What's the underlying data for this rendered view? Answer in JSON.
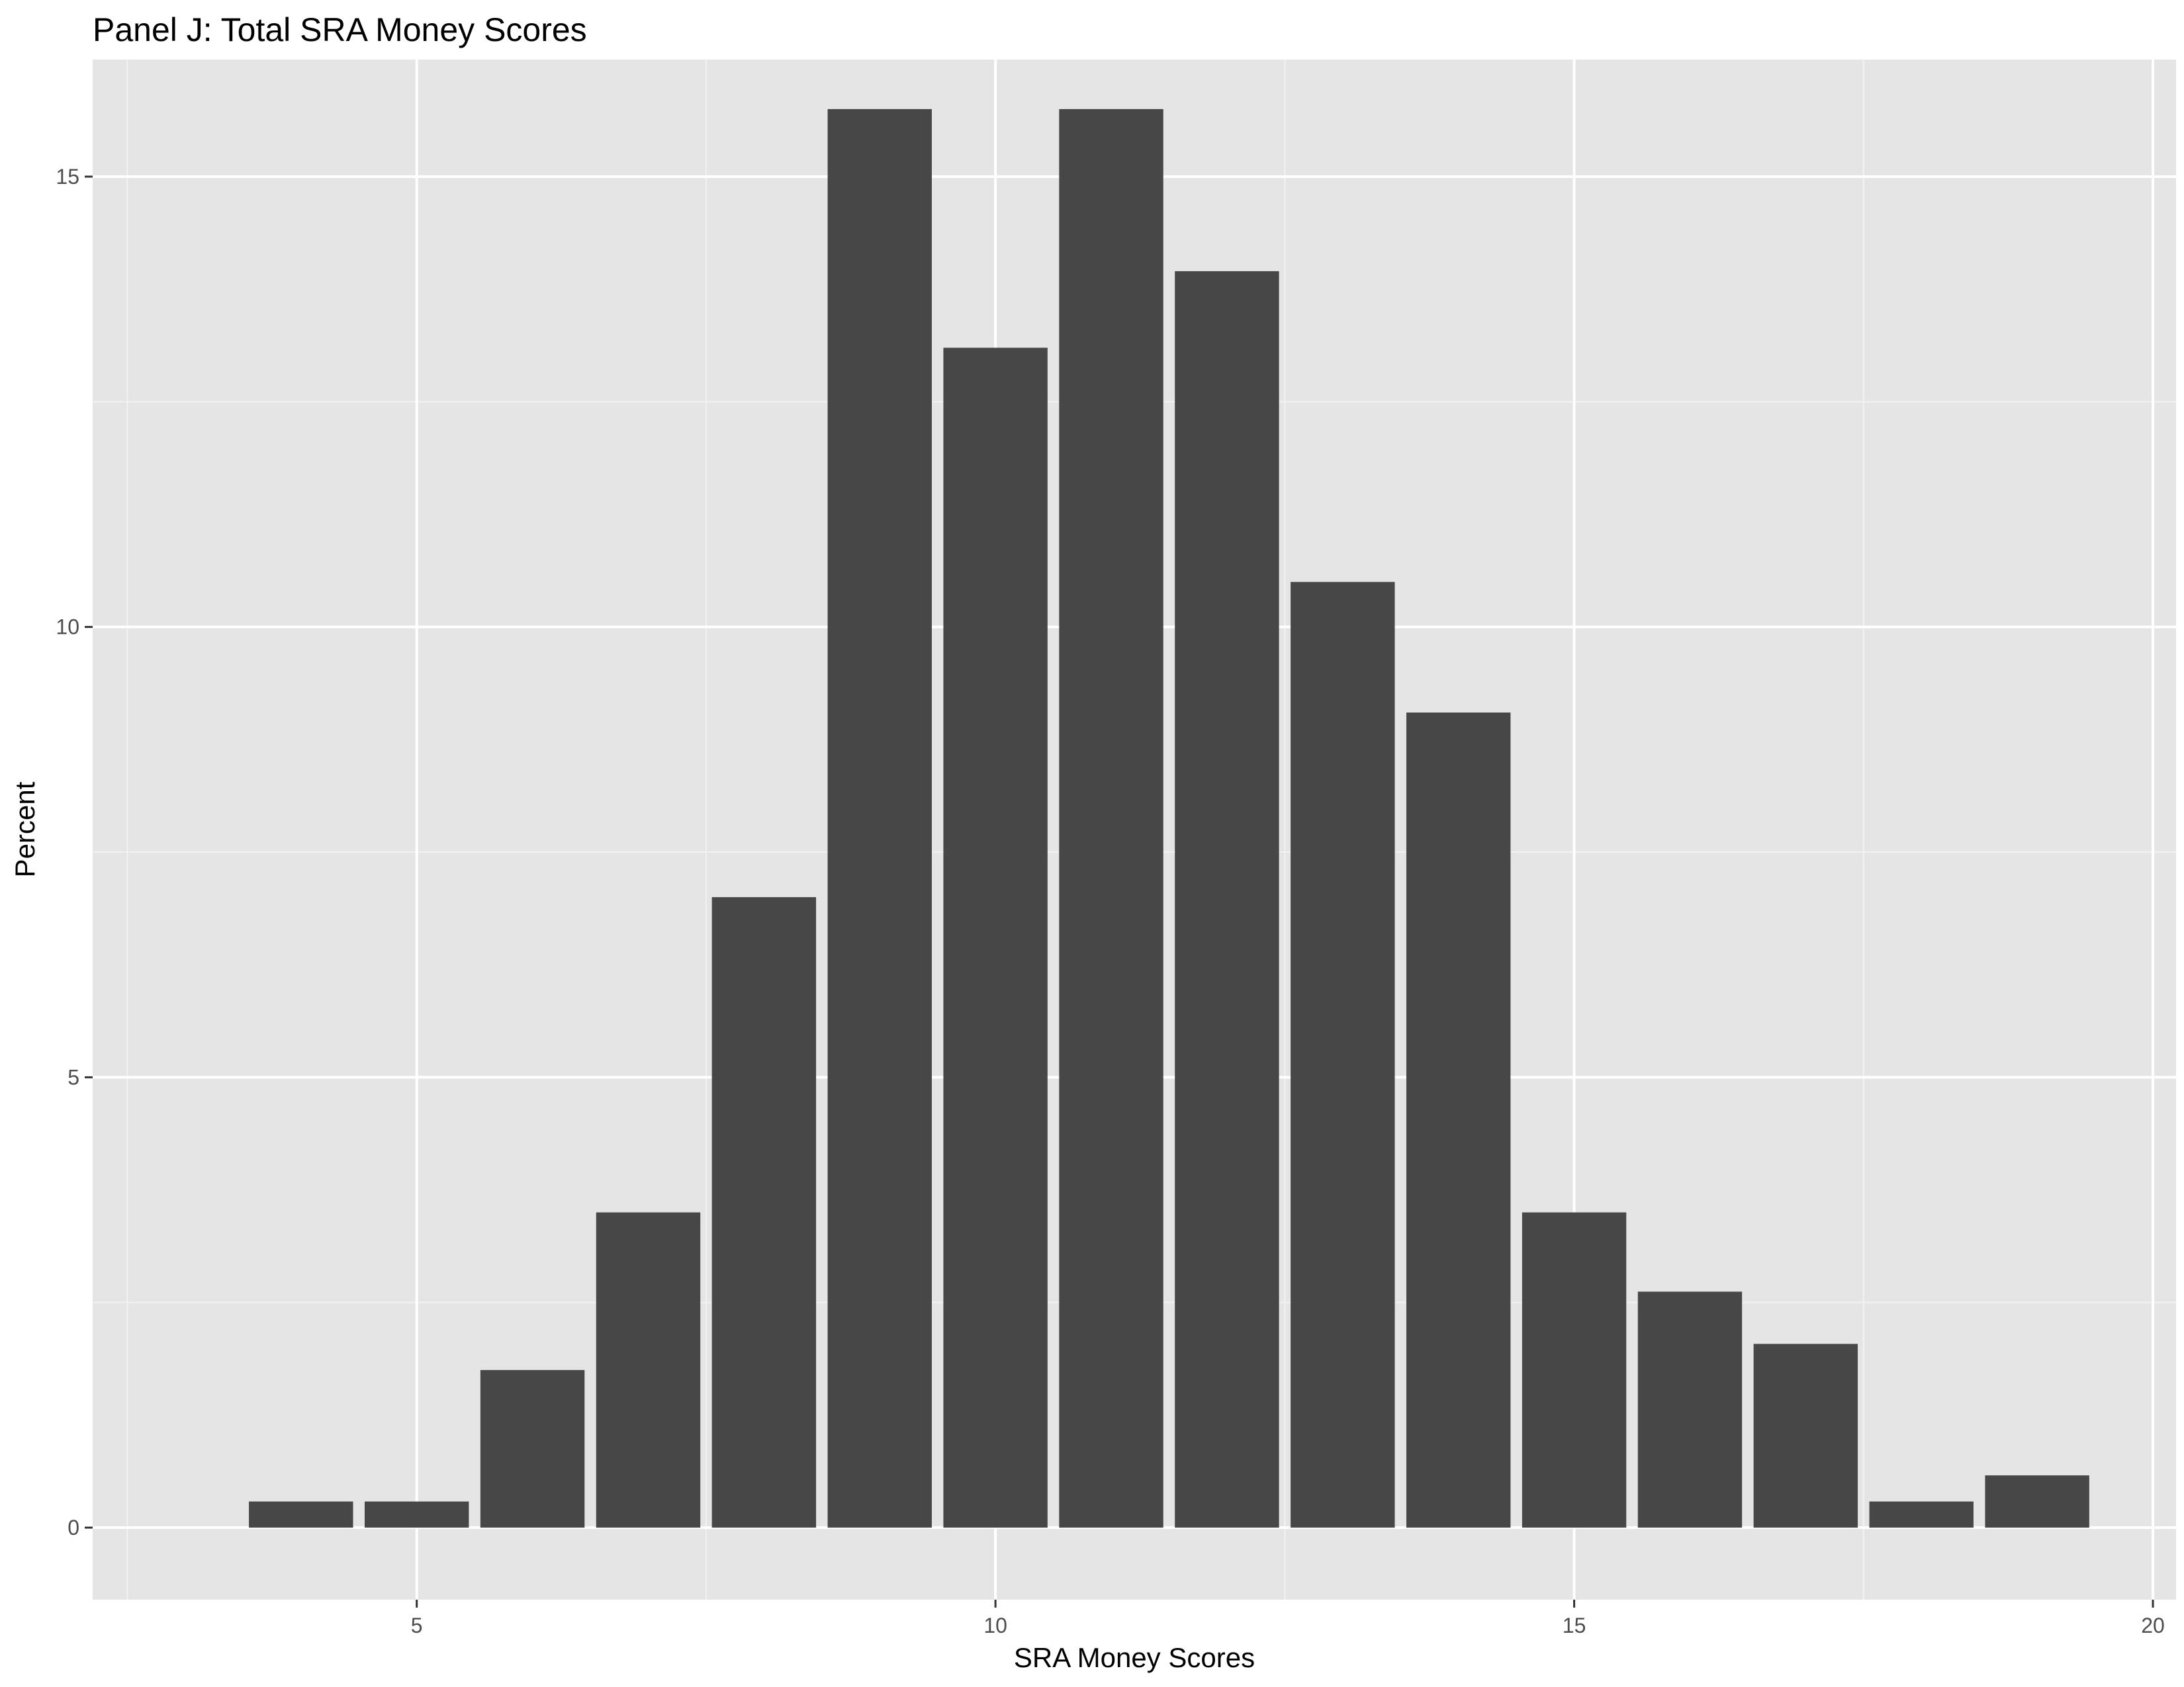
{
  "chart_data": {
    "type": "bar",
    "title": "Panel J: Total SRA Money Scores",
    "xlabel": "SRA Money Scores",
    "ylabel": "Percent",
    "x": [
      4,
      5,
      6,
      7,
      8,
      9,
      10,
      11,
      12,
      13,
      14,
      15,
      16,
      17,
      18,
      19
    ],
    "values": [
      0.29,
      0.29,
      1.75,
      3.5,
      7.0,
      15.75,
      13.1,
      15.75,
      13.95,
      10.5,
      9.05,
      3.5,
      2.62,
      2.04,
      0.29,
      0.58
    ],
    "xlim": [
      2.2,
      20.2
    ],
    "ylim": [
      -0.8,
      16.3
    ],
    "xticks": [
      5,
      10,
      15,
      20
    ],
    "yticks": [
      0,
      5,
      10,
      15
    ],
    "bar_width": 0.9,
    "grid": true,
    "legend": "none",
    "colors": {
      "bar": "#474747",
      "panel": "#e5e5e5",
      "grid_major": "#ffffff",
      "grid_minor": "#f2f2f2",
      "tick_label": "#4d4d4d"
    }
  }
}
